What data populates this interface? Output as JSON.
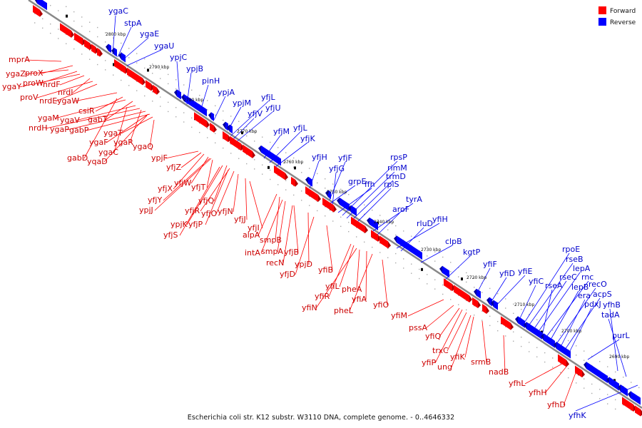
{
  "colors": {
    "forward": "#ff0000",
    "forward_dark": "#b00000",
    "forward_light": "#ff8080",
    "reverse": "#0000ff",
    "reverse_dark": "#0000a0",
    "reverse_light": "#8080ff",
    "axis": "#888888"
  },
  "legend": {
    "forward_label": "Forward",
    "reverse_label": "Reverse"
  },
  "caption": "Escherichia coli str. K12 substr. W3110 DNA, complete genome. - 0..4646332",
  "kbp_marks": [
    "2800 kbp",
    "2790 kbp",
    "2780 kbp",
    "2770 kbp",
    "2760 kbp",
    "2750 kbp",
    "2740 kbp",
    "2730 kbp",
    "2720 kbp",
    "2710 kbp",
    "2700 kbp",
    "2690 kbp"
  ],
  "reverse_genes": [
    "ygaC",
    "stpA",
    "ygaE",
    "ygaU",
    "ypjC",
    "ypjB",
    "pinH",
    "ypjA",
    "ypjM",
    "yfjL",
    "yfjV",
    "yfjU",
    "yfjM",
    "yfjL",
    "yfjK",
    "yfjH",
    "yfjF",
    "yfjG",
    "rpsP",
    "rimM",
    "trmD",
    "rplS",
    "ffh",
    "grpE",
    "tyrA",
    "aroF",
    "yfiH",
    "rluD",
    "clpB",
    "kgtP",
    "yfiF",
    "yfiD",
    "yfiE",
    "yfiC",
    "rpoE",
    "rseB",
    "rseC",
    "lepA",
    "rseA",
    "rnc",
    "lepB",
    "recO",
    "era",
    "acpS",
    "pdxJ",
    "yfhB",
    "tadA",
    "purL",
    "yfhK"
  ],
  "forward_genes": [
    "mprA",
    "proX",
    "ygaZ",
    "proW",
    "ygaY",
    "nrdF",
    "nrdI",
    "proV",
    "nrdE",
    "ygaW",
    "csiR",
    "gabT",
    "ygaM",
    "ygaV",
    "nrdH",
    "ygaP",
    "gabP",
    "ygaT",
    "ygaF",
    "ygaR",
    "gabD",
    "ygaC",
    "ygaQ",
    "yqaD",
    "ypjF",
    "yfjZ",
    "yfjX",
    "yfjW",
    "yfjY",
    "yfjT",
    "ypjJ",
    "yfjQ",
    "yfjR",
    "yfjO",
    "yfjN",
    "ypjK",
    "yfjP",
    "yfjS",
    "yfjJ",
    "yfjI",
    "alpA",
    "smpB",
    "intA",
    "smpA",
    "yfjB",
    "recN",
    "ypjD",
    "yfjD",
    "yfiB",
    "yfiL",
    "pheA",
    "yfiR",
    "yfiA",
    "yfiN",
    "pheL",
    "yfiO",
    "yfiM",
    "pssA",
    "yfiQ",
    "trxC",
    "yfiK",
    "yfiP",
    "ung",
    "srmB",
    "nadB",
    "yfhL",
    "yfhH",
    "yfhD"
  ]
}
